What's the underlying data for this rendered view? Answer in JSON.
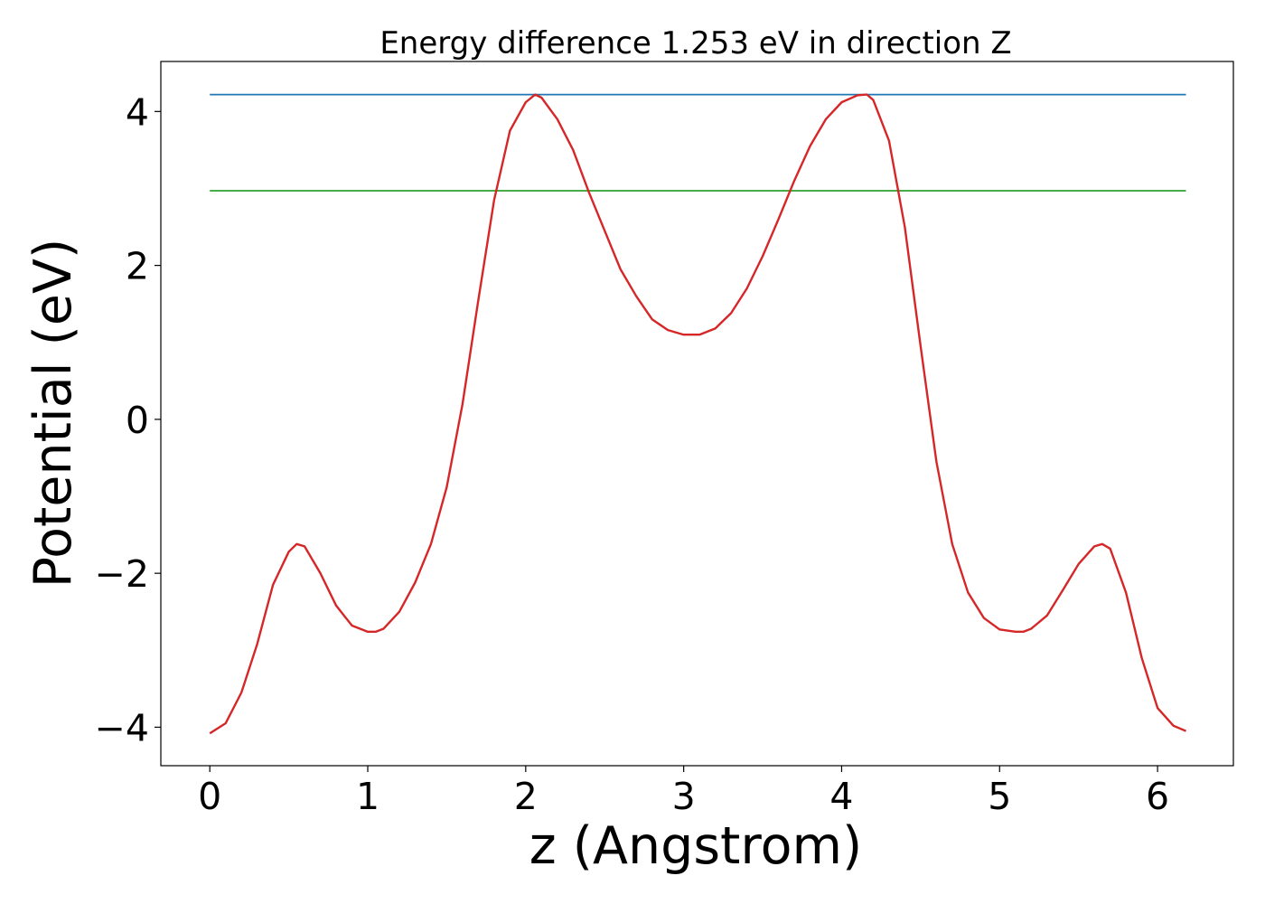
{
  "chart_data": {
    "type": "line",
    "title": "Energy difference 1.253 eV in direction Z",
    "xlabel": "z (Angstrom)",
    "ylabel": "Potential (eV)",
    "xlim": [
      -0.31,
      6.48
    ],
    "ylim": [
      -4.5,
      4.65
    ],
    "xticks": [
      0,
      1,
      2,
      3,
      4,
      5,
      6
    ],
    "xtick_labels": [
      "0",
      "1",
      "2",
      "3",
      "4",
      "5",
      "6"
    ],
    "yticks": [
      -4,
      -2,
      0,
      2,
      4
    ],
    "ytick_labels": [
      "−4",
      "−2",
      "0",
      "2",
      "4"
    ],
    "grid": false,
    "legend": "none",
    "series": [
      {
        "color": "#d62728",
        "x": [
          0.0,
          0.1,
          0.2,
          0.3,
          0.4,
          0.5,
          0.55,
          0.6,
          0.7,
          0.8,
          0.9,
          1.0,
          1.05,
          1.1,
          1.2,
          1.3,
          1.4,
          1.5,
          1.6,
          1.7,
          1.8,
          1.9,
          2.0,
          2.06,
          2.1,
          2.2,
          2.3,
          2.4,
          2.5,
          2.6,
          2.7,
          2.8,
          2.9,
          3.0,
          3.1,
          3.2,
          3.3,
          3.4,
          3.5,
          3.6,
          3.7,
          3.8,
          3.9,
          4.0,
          4.1,
          4.16,
          4.2,
          4.3,
          4.4,
          4.5,
          4.6,
          4.7,
          4.8,
          4.9,
          5.0,
          5.1,
          5.15,
          5.2,
          5.3,
          5.4,
          5.5,
          5.6,
          5.65,
          5.7,
          5.8,
          5.9,
          6.0,
          6.1,
          6.18
        ],
        "values": [
          -4.08,
          -3.95,
          -3.55,
          -2.92,
          -2.15,
          -1.72,
          -1.62,
          -1.65,
          -2.0,
          -2.42,
          -2.68,
          -2.76,
          -2.76,
          -2.72,
          -2.5,
          -2.12,
          -1.62,
          -0.88,
          0.2,
          1.55,
          2.85,
          3.75,
          4.12,
          4.22,
          4.18,
          3.9,
          3.5,
          2.95,
          2.45,
          1.95,
          1.6,
          1.3,
          1.16,
          1.1,
          1.1,
          1.18,
          1.38,
          1.7,
          2.12,
          2.6,
          3.1,
          3.55,
          3.9,
          4.12,
          4.21,
          4.22,
          4.15,
          3.62,
          2.5,
          0.95,
          -0.55,
          -1.62,
          -2.25,
          -2.58,
          -2.73,
          -2.76,
          -2.76,
          -2.72,
          -2.55,
          -2.22,
          -1.88,
          -1.65,
          -1.62,
          -1.68,
          -2.25,
          -3.1,
          -3.75,
          -3.98,
          -4.05
        ]
      },
      {
        "color": "#1f77b4",
        "x": [
          0.0,
          6.18
        ],
        "values": [
          4.22,
          4.22
        ]
      },
      {
        "color": "#2ca02c",
        "x": [
          0.0,
          6.18
        ],
        "values": [
          2.97,
          2.97
        ]
      }
    ]
  },
  "colors": {
    "background": "#ffffff",
    "axes": "#000000"
  }
}
